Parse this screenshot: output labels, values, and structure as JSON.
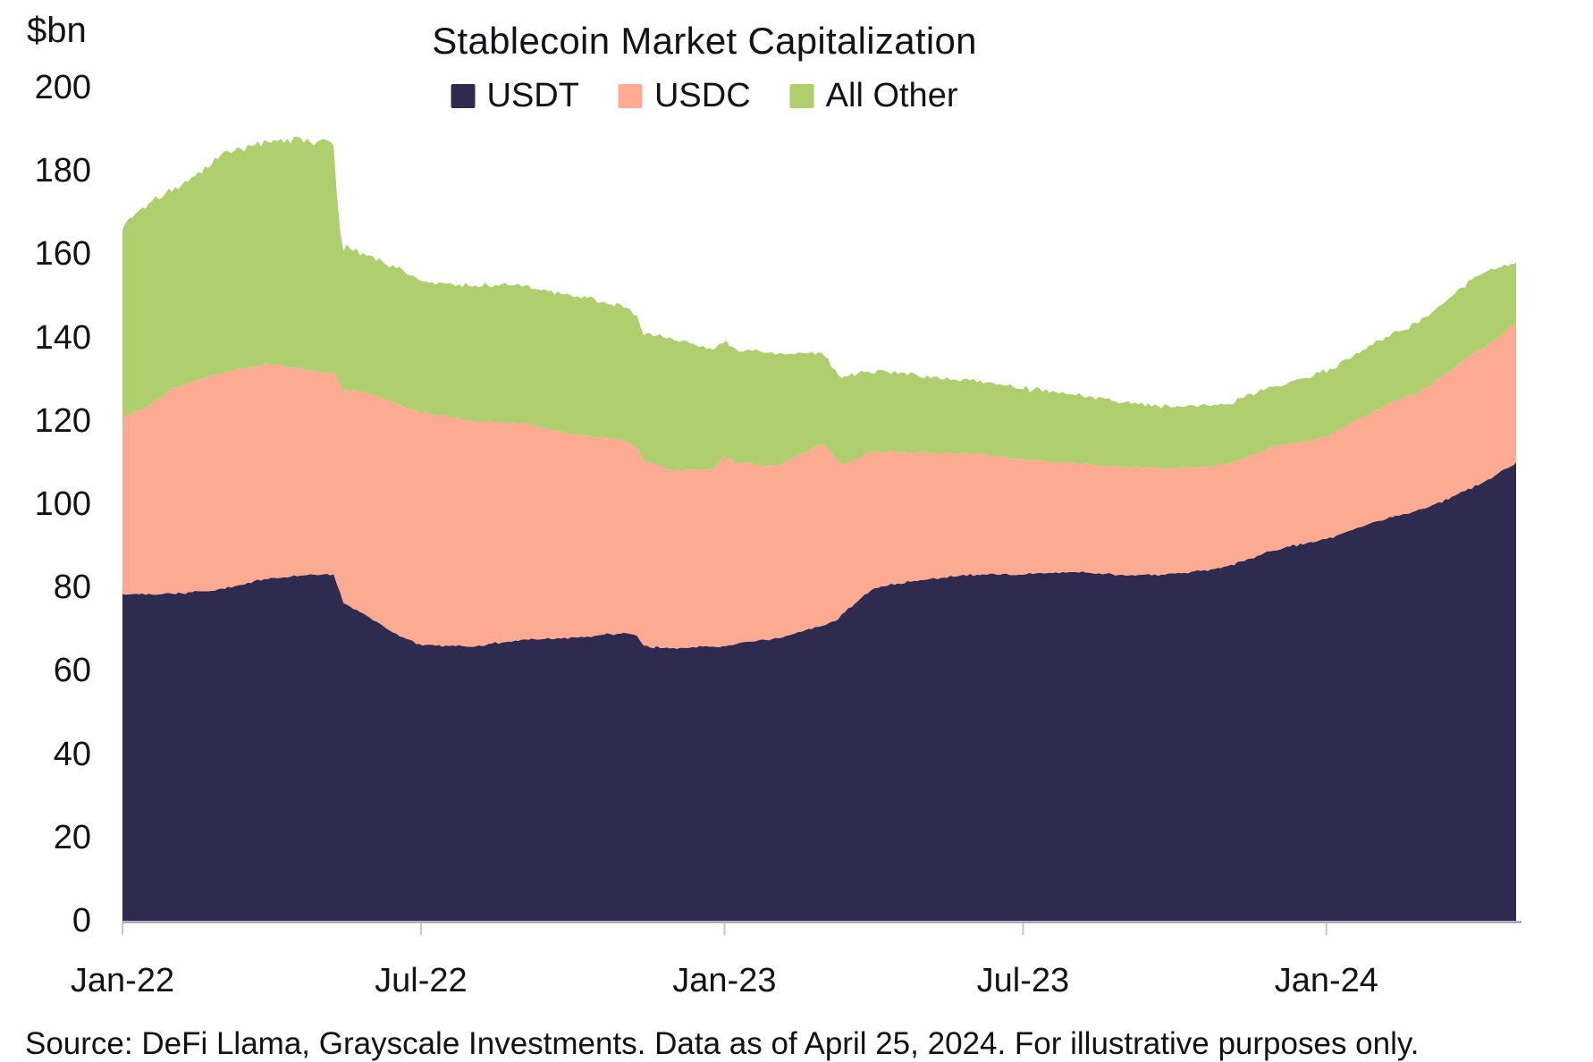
{
  "source_note": "Source: DeFi Llama, Grayscale Investments. Data as of April 25, 2024. For illustrative purposes only.",
  "chart_data": {
    "type": "area",
    "stacked": true,
    "title": "Stablecoin Market Capitalization",
    "y_unit": "$bn",
    "ylim": [
      0,
      200
    ],
    "y_ticks": [
      0,
      20,
      40,
      60,
      80,
      100,
      120,
      140,
      160,
      180,
      200
    ],
    "gridlines": false,
    "legend_position": "top-center",
    "x_unit": "days since 2022-01-01 (daily series, ends 2024-04-25)",
    "x_range_days": [
      0,
      845
    ],
    "x_ticks": [
      {
        "day": 0,
        "label": "Jan-22"
      },
      {
        "day": 181,
        "label": "Jul-22"
      },
      {
        "day": 365,
        "label": "Jan-23"
      },
      {
        "day": 546,
        "label": "Jul-23"
      },
      {
        "day": 730,
        "label": "Jan-24"
      }
    ],
    "keyframe_days": [
      0,
      15,
      31,
      59,
      90,
      120,
      128,
      131,
      134,
      151,
      160,
      181,
      212,
      243,
      273,
      304,
      312,
      316,
      334,
      358,
      365,
      372,
      396,
      424,
      433,
      436,
      455,
      485,
      516,
      546,
      577,
      608,
      638,
      669,
      699,
      730,
      761,
      790,
      821,
      835,
      845
    ],
    "series": [
      {
        "name": "USDT",
        "color": "#2F2A4F",
        "values": [
          78.4,
          78.4,
          78.5,
          79.5,
          82.3,
          83.2,
          83.0,
          80.0,
          76.5,
          72.5,
          70.0,
          66.2,
          65.8,
          67.5,
          67.9,
          69.1,
          68.5,
          65.9,
          65.3,
          65.9,
          65.8,
          66.5,
          67.7,
          70.9,
          72.0,
          73.5,
          79.9,
          81.8,
          83.1,
          83.2,
          83.8,
          82.9,
          83.2,
          84.9,
          89.1,
          91.7,
          96.1,
          98.9,
          104.4,
          107.5,
          110.0
        ]
      },
      {
        "name": "USDC",
        "color": "#FCAB92",
        "values": [
          42.4,
          45.0,
          49.5,
          52.0,
          51.5,
          48.5,
          48.5,
          50.0,
          51.0,
          53.8,
          55.0,
          55.9,
          54.1,
          52.0,
          48.9,
          46.2,
          45.0,
          44.5,
          42.8,
          42.5,
          45.8,
          43.5,
          41.5,
          43.6,
          39.0,
          36.0,
          32.8,
          30.5,
          29.0,
          27.5,
          26.1,
          26.0,
          25.3,
          24.6,
          24.6,
          24.6,
          26.8,
          28.8,
          32.4,
          32.8,
          33.4
        ]
      },
      {
        "name": "All Other",
        "color": "#AFCE6E",
        "values": [
          46.2,
          48.6,
          47.0,
          52.0,
          53.5,
          55.5,
          55.0,
          38.0,
          34.5,
          33.0,
          33.0,
          31.5,
          32.5,
          33.0,
          33.2,
          32.5,
          31.5,
          30.5,
          31.9,
          28.5,
          27.5,
          27.0,
          27.0,
          21.5,
          21.0,
          21.0,
          19.5,
          18.5,
          17.5,
          17.0,
          16.5,
          15.5,
          14.8,
          14.5,
          14.8,
          15.5,
          16.0,
          17.0,
          18.0,
          17.0,
          14.5
        ]
      }
    ],
    "axis_style": {
      "axis_line_color": "#8d89a6",
      "tick_color": "#c6c3d2"
    }
  }
}
